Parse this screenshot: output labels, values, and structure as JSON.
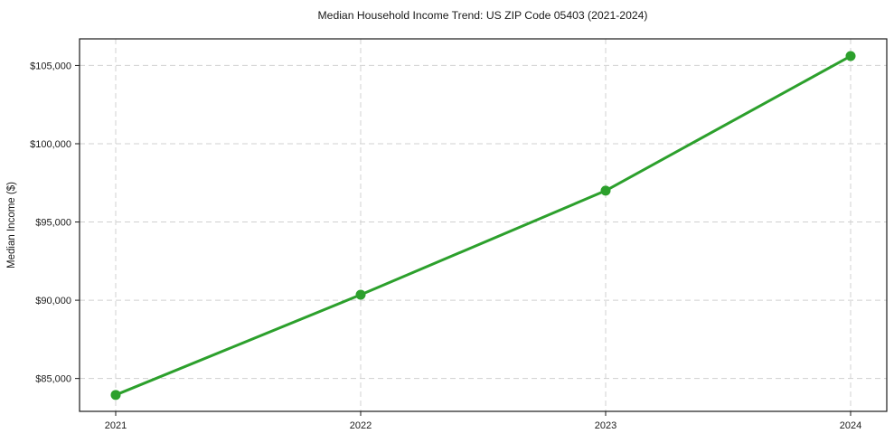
{
  "chart_data": {
    "type": "line",
    "title": "Median Household Income Trend: US ZIP Code 05403 (2021-2024)",
    "xlabel": "",
    "ylabel": "Median Income ($)",
    "x": [
      2021,
      2022,
      2023,
      2024
    ],
    "xticklabels": [
      "2021",
      "2022",
      "2023",
      "2024"
    ],
    "series": [
      {
        "values": [
          83950,
          90350,
          97000,
          105600
        ],
        "color": "#2ca02c",
        "marker": "circle",
        "line_width": 3
      }
    ],
    "yticks": [
      85000,
      90000,
      95000,
      100000,
      105000
    ],
    "yticklabels": [
      "$85,000",
      "$90,000",
      "$95,000",
      "$100,000",
      "$105,000"
    ],
    "ylim": [
      82900,
      106700
    ],
    "grid": true,
    "grid_color": "#d0d0d0",
    "grid_style": "dashed",
    "legend_position": "none",
    "background_color": "#ffffff",
    "border": "full-box"
  }
}
